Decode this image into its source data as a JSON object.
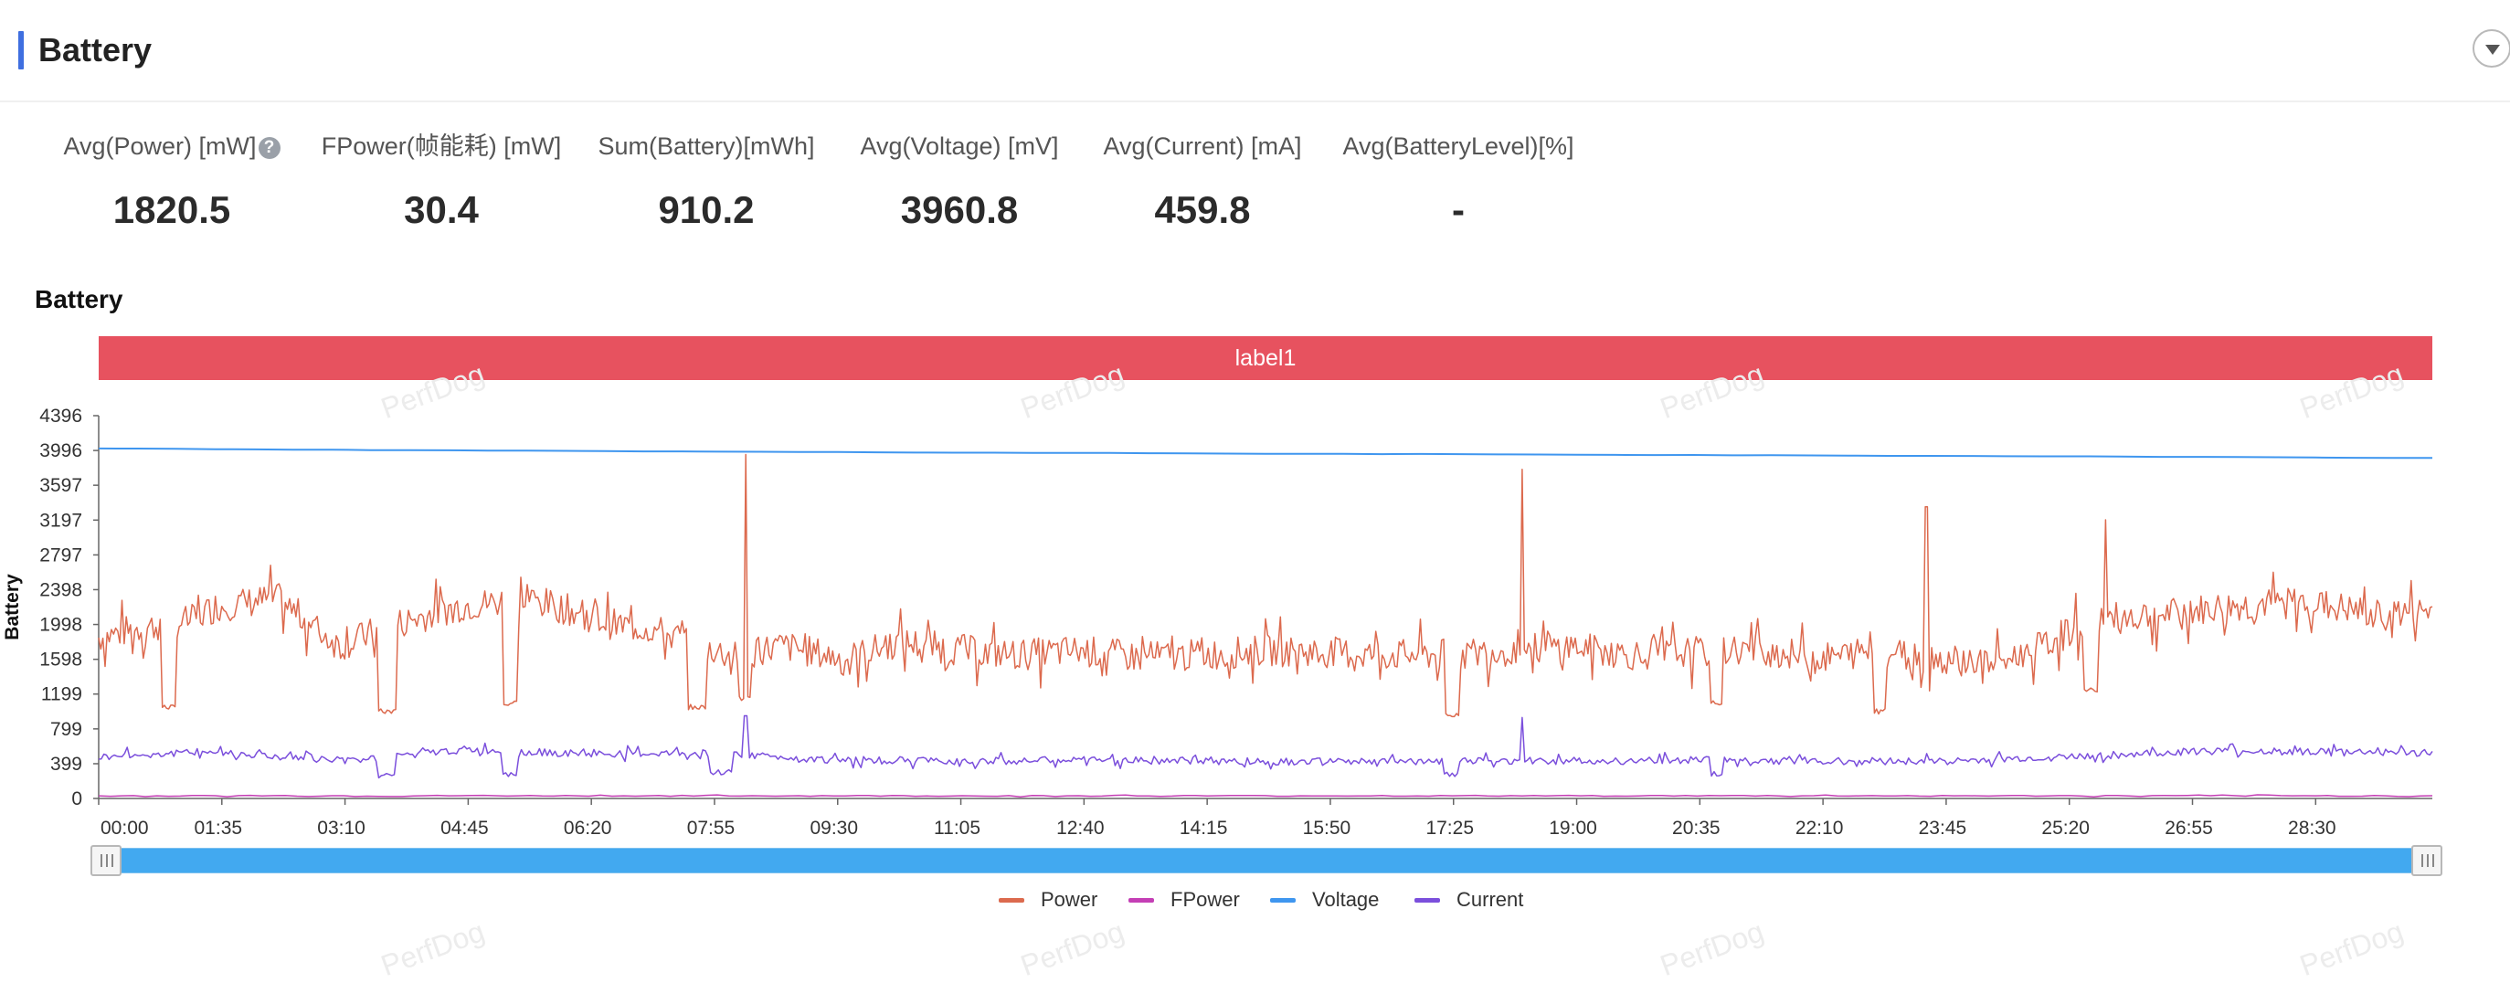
{
  "section": {
    "title": "Battery",
    "collapse_icon": "chevron-down-icon"
  },
  "metrics": [
    {
      "label": "Avg(Power) [mW]",
      "value": "1820.5",
      "help": "?"
    },
    {
      "label": "FPower(帧能耗) [mW]",
      "value": "30.4"
    },
    {
      "label": "Sum(Battery)[mWh]",
      "value": "910.2"
    },
    {
      "label": "Avg(Voltage) [mV]",
      "value": "3960.8"
    },
    {
      "label": "Avg(Current) [mA]",
      "value": "459.8"
    },
    {
      "label": "Avg(BatteryLevel)[%]",
      "value": "-"
    }
  ],
  "chart": {
    "title": "Battery",
    "band_label": "label1",
    "watermark": "PerfDog"
  },
  "chart_data": {
    "type": "line",
    "title": "Battery",
    "ylabel": "Battery",
    "xlabel": "",
    "ylim": [
      0,
      4396
    ],
    "y_ticks": [
      "0",
      "399",
      "799",
      "1199",
      "1598",
      "1998",
      "2398",
      "2797",
      "3197",
      "3597",
      "3996",
      "4396"
    ],
    "x_ticks": [
      "00:00",
      "01:35",
      "03:10",
      "04:45",
      "06:20",
      "07:55",
      "09:30",
      "11:05",
      "12:40",
      "14:15",
      "15:50",
      "17:25",
      "19:00",
      "20:35",
      "22:10",
      "23:45",
      "25:20",
      "26:55",
      "28:30"
    ],
    "x_range_min": [
      0,
      30
    ],
    "grid": false,
    "legend_position": "bottom",
    "series": [
      {
        "name": "Power",
        "color": "#dc6a4e",
        "x": [
          0,
          0.5,
          1.2,
          1.5,
          2.3,
          2.8,
          3.1,
          3.8,
          4.6,
          5.5,
          6.1,
          6.6,
          7.1,
          7.6,
          8.1,
          8.8,
          9.6,
          10.3,
          11.1,
          11.8,
          12.6,
          13.4,
          14.2,
          15.0,
          15.8,
          16.5,
          17.3,
          18.1,
          18.9,
          19.7,
          20.5,
          21.3,
          22.1,
          22.8,
          23.6,
          24.4,
          25.0,
          25.6,
          26.5,
          27.4,
          28.4,
          29.3,
          30.0
        ],
        "y": [
          1850,
          1950,
          2050,
          2200,
          2300,
          1950,
          1750,
          2000,
          2200,
          2300,
          2150,
          2000,
          1950,
          1800,
          1650,
          1750,
          1600,
          1800,
          1700,
          1650,
          1700,
          1620,
          1650,
          1700,
          1680,
          1650,
          1650,
          1700,
          1750,
          1650,
          1680,
          1720,
          1600,
          1700,
          1620,
          1550,
          1750,
          2050,
          2100,
          2200,
          2250,
          2100,
          2150
        ]
      },
      {
        "name": "FPower",
        "color": "#c43fb5",
        "x": [
          0,
          5,
          10,
          15,
          20,
          25,
          30
        ],
        "y": [
          30,
          31,
          30,
          30,
          31,
          30,
          30
        ]
      },
      {
        "name": "Voltage",
        "color": "#3f96ef",
        "x": [
          0,
          5,
          10,
          15,
          20,
          25,
          30
        ],
        "y": [
          4020,
          3995,
          3975,
          3960,
          3945,
          3930,
          3910
        ]
      },
      {
        "name": "Current",
        "color": "#7b4fdc",
        "x": [
          0,
          1.5,
          3.1,
          4.7,
          6.3,
          7.9,
          9.5,
          11.1,
          12.7,
          14.3,
          15.9,
          17.5,
          19.1,
          20.7,
          22.3,
          23.9,
          25.4,
          27.0,
          28.6,
          30.0
        ],
        "y": [
          480,
          540,
          430,
          560,
          510,
          520,
          440,
          430,
          440,
          430,
          420,
          430,
          430,
          440,
          430,
          430,
          480,
          540,
          540,
          520
        ]
      }
    ],
    "spikes": [
      {
        "series": "Power",
        "x": 8.32,
        "y": 3950
      },
      {
        "series": "Power",
        "x": 18.3,
        "y": 3780
      },
      {
        "series": "Power",
        "x": 23.5,
        "y": 3350
      },
      {
        "series": "Power",
        "x": 25.8,
        "y": 3200
      },
      {
        "series": "Current",
        "x": 8.32,
        "y": 950
      },
      {
        "series": "Current",
        "x": 18.3,
        "y": 930
      },
      {
        "series": "FPower",
        "x": 8.32,
        "y": 250
      }
    ]
  },
  "slider": {
    "start_fraction": 0,
    "end_fraction": 1
  }
}
